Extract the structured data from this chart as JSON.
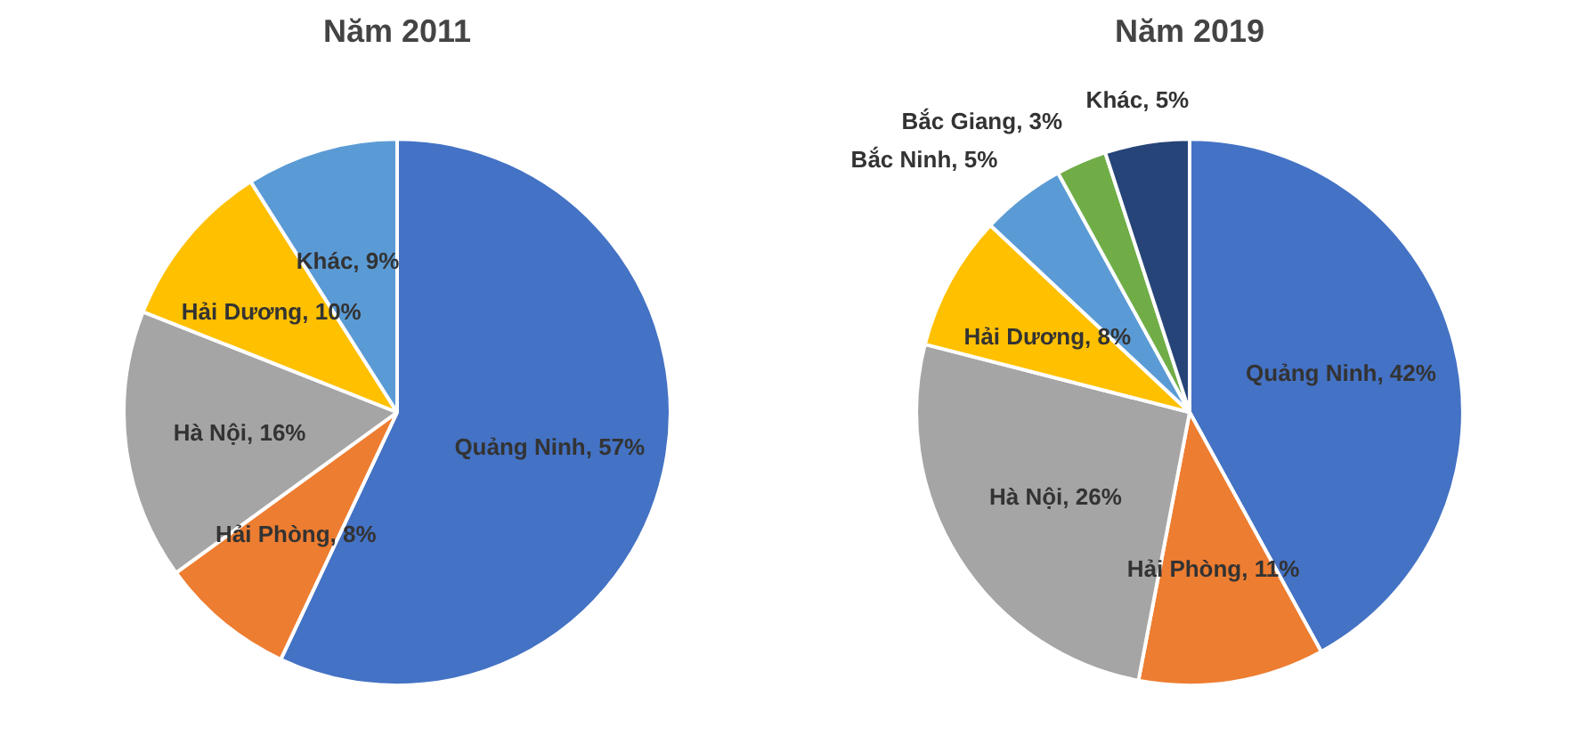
{
  "chart_data": [
    {
      "type": "pie",
      "title": "Năm 2011",
      "categories": [
        "Quảng Ninh",
        "Hải Phòng",
        "Hà Nội",
        "Hải Dương",
        "Khác"
      ],
      "values": [
        57,
        8,
        16,
        10,
        9
      ],
      "colors": [
        "#4472c4",
        "#ed7d31",
        "#a5a5a5",
        "#ffc000",
        "#5b9bd5"
      ],
      "value_labels": [
        ", 57%",
        ", 8%",
        ", 16%",
        ", 10%",
        ", 9%"
      ]
    },
    {
      "type": "pie",
      "title": "Năm 2019",
      "categories": [
        "Quảng Ninh",
        "Hải Phòng",
        "Hà Nội",
        "Hải Dương",
        "Bắc Ninh",
        "Bắc Giang",
        "Khác"
      ],
      "values": [
        42,
        11,
        26,
        8,
        5,
        3,
        5
      ],
      "colors": [
        "#4472c4",
        "#ed7d31",
        "#a5a5a5",
        "#ffc000",
        "#5b9bd5",
        "#70ad47",
        "#264478"
      ],
      "value_labels": [
        ", 42%",
        ", 11%",
        ", 26%",
        ", 8%",
        ", 5%",
        ", 3%",
        ", 5%"
      ]
    }
  ]
}
